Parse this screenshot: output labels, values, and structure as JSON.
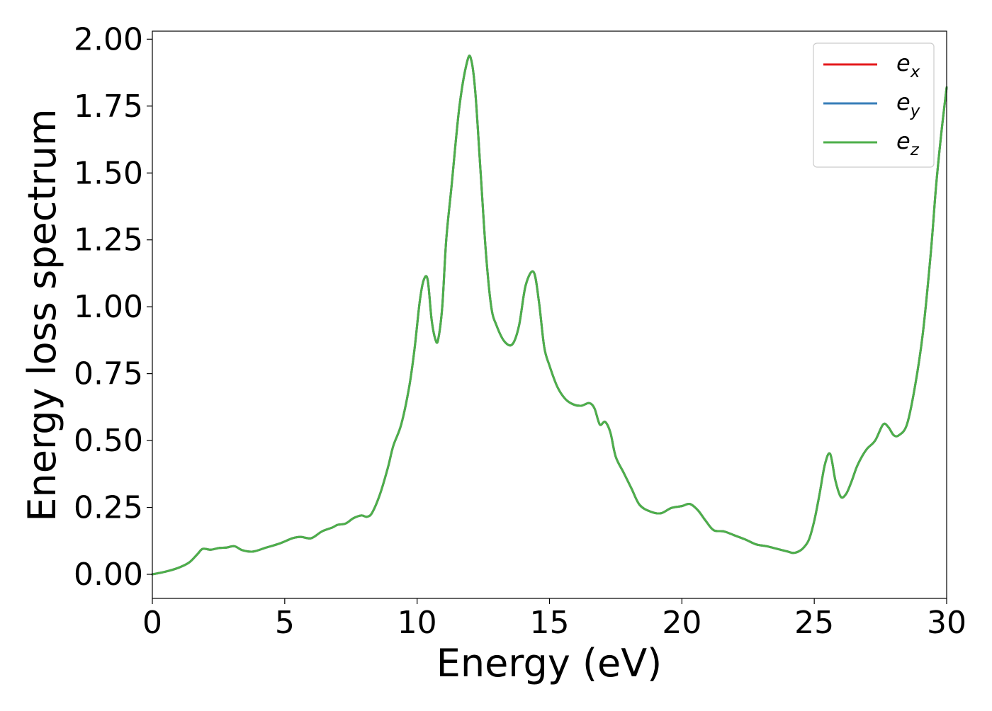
{
  "chart_data": {
    "type": "line",
    "title": "",
    "xlabel": "Energy (eV)",
    "ylabel": "Energy loss spectrum",
    "xlim": [
      0,
      30
    ],
    "ylim": [
      -0.09,
      2.03
    ],
    "xticks": [
      0,
      5,
      10,
      15,
      20,
      25,
      30
    ],
    "xtick_labels": [
      "0",
      "5",
      "10",
      "15",
      "20",
      "25",
      "30"
    ],
    "yticks": [
      0.0,
      0.25,
      0.5,
      0.75,
      1.0,
      1.25,
      1.5,
      1.75,
      2.0
    ],
    "ytick_labels": [
      "0.00",
      "0.25",
      "0.50",
      "0.75",
      "1.00",
      "1.25",
      "1.50",
      "1.75",
      "2.00"
    ],
    "grid": false,
    "legend_position": "top-right",
    "x": [
      0,
      0.5,
      1.0,
      1.4,
      1.7,
      1.9,
      2.2,
      2.5,
      2.8,
      3.1,
      3.4,
      3.8,
      4.3,
      4.8,
      5.3,
      5.6,
      6.0,
      6.4,
      6.8,
      7.0,
      7.3,
      7.6,
      7.9,
      8.1,
      8.3,
      8.6,
      8.9,
      9.1,
      9.4,
      9.7,
      9.9,
      10.1,
      10.25,
      10.4,
      10.55,
      10.7,
      10.8,
      10.95,
      11.1,
      11.3,
      11.6,
      11.9,
      12.05,
      12.2,
      12.4,
      12.6,
      12.8,
      13.0,
      13.3,
      13.6,
      13.85,
      14.1,
      14.4,
      14.6,
      14.8,
      15.0,
      15.3,
      15.6,
      15.9,
      16.2,
      16.5,
      16.7,
      16.9,
      17.1,
      17.3,
      17.5,
      17.8,
      18.1,
      18.4,
      18.8,
      19.2,
      19.6,
      20.0,
      20.3,
      20.6,
      20.9,
      21.2,
      21.6,
      22.0,
      22.4,
      22.8,
      23.2,
      23.6,
      24.0,
      24.2,
      24.4,
      24.6,
      24.8,
      25.0,
      25.2,
      25.4,
      25.6,
      25.8,
      26.0,
      26.2,
      26.4,
      26.6,
      26.8,
      27.0,
      27.3,
      27.6,
      27.8,
      28.0,
      28.2,
      28.5,
      28.8,
      29.1,
      29.4,
      29.6,
      29.8,
      30.0
    ],
    "series": [
      {
        "name": "e_x",
        "color": "#e41a1c",
        "values": [
          0.0,
          0.01,
          0.025,
          0.045,
          0.075,
          0.095,
          0.092,
          0.098,
          0.1,
          0.105,
          0.09,
          0.085,
          0.1,
          0.115,
          0.135,
          0.14,
          0.135,
          0.16,
          0.175,
          0.185,
          0.19,
          0.21,
          0.22,
          0.215,
          0.23,
          0.3,
          0.4,
          0.48,
          0.56,
          0.7,
          0.84,
          1.02,
          1.1,
          1.1,
          0.95,
          0.875,
          0.88,
          1.0,
          1.25,
          1.45,
          1.75,
          1.92,
          1.92,
          1.8,
          1.5,
          1.2,
          1.0,
          0.93,
          0.87,
          0.86,
          0.93,
          1.08,
          1.13,
          1.02,
          0.85,
          0.78,
          0.7,
          0.655,
          0.635,
          0.63,
          0.64,
          0.62,
          0.56,
          0.57,
          0.53,
          0.44,
          0.38,
          0.32,
          0.26,
          0.235,
          0.228,
          0.248,
          0.255,
          0.263,
          0.24,
          0.2,
          0.165,
          0.16,
          0.145,
          0.13,
          0.112,
          0.105,
          0.095,
          0.085,
          0.08,
          0.085,
          0.1,
          0.13,
          0.2,
          0.3,
          0.41,
          0.45,
          0.35,
          0.29,
          0.3,
          0.345,
          0.4,
          0.44,
          0.47,
          0.5,
          0.56,
          0.55,
          0.52,
          0.52,
          0.56,
          0.7,
          0.9,
          1.2,
          1.45,
          1.65,
          1.82
        ]
      },
      {
        "name": "e_y",
        "color": "#377eb8",
        "values": [
          0.0,
          0.01,
          0.025,
          0.045,
          0.075,
          0.095,
          0.092,
          0.098,
          0.1,
          0.105,
          0.09,
          0.085,
          0.1,
          0.115,
          0.135,
          0.14,
          0.135,
          0.16,
          0.175,
          0.185,
          0.19,
          0.21,
          0.22,
          0.215,
          0.23,
          0.3,
          0.4,
          0.48,
          0.56,
          0.7,
          0.84,
          1.02,
          1.1,
          1.1,
          0.95,
          0.875,
          0.88,
          1.0,
          1.25,
          1.45,
          1.75,
          1.92,
          1.92,
          1.8,
          1.5,
          1.2,
          1.0,
          0.93,
          0.87,
          0.86,
          0.93,
          1.08,
          1.13,
          1.02,
          0.85,
          0.78,
          0.7,
          0.655,
          0.635,
          0.63,
          0.64,
          0.62,
          0.56,
          0.57,
          0.53,
          0.44,
          0.38,
          0.32,
          0.26,
          0.235,
          0.228,
          0.248,
          0.255,
          0.263,
          0.24,
          0.2,
          0.165,
          0.16,
          0.145,
          0.13,
          0.112,
          0.105,
          0.095,
          0.085,
          0.08,
          0.085,
          0.1,
          0.13,
          0.2,
          0.3,
          0.41,
          0.45,
          0.35,
          0.29,
          0.3,
          0.345,
          0.4,
          0.44,
          0.47,
          0.5,
          0.56,
          0.55,
          0.52,
          0.52,
          0.56,
          0.7,
          0.9,
          1.2,
          1.45,
          1.65,
          1.82
        ]
      },
      {
        "name": "e_z",
        "color": "#4daf4a",
        "values": [
          0.0,
          0.01,
          0.025,
          0.045,
          0.075,
          0.095,
          0.092,
          0.098,
          0.1,
          0.105,
          0.09,
          0.085,
          0.1,
          0.115,
          0.135,
          0.14,
          0.135,
          0.16,
          0.175,
          0.185,
          0.19,
          0.21,
          0.22,
          0.215,
          0.23,
          0.3,
          0.4,
          0.48,
          0.56,
          0.7,
          0.84,
          1.02,
          1.1,
          1.1,
          0.95,
          0.875,
          0.88,
          1.0,
          1.25,
          1.45,
          1.75,
          1.92,
          1.92,
          1.8,
          1.5,
          1.2,
          1.0,
          0.93,
          0.87,
          0.86,
          0.93,
          1.08,
          1.13,
          1.02,
          0.85,
          0.78,
          0.7,
          0.655,
          0.635,
          0.63,
          0.64,
          0.62,
          0.56,
          0.57,
          0.53,
          0.44,
          0.38,
          0.32,
          0.26,
          0.235,
          0.228,
          0.248,
          0.255,
          0.263,
          0.24,
          0.2,
          0.165,
          0.16,
          0.145,
          0.13,
          0.112,
          0.105,
          0.095,
          0.085,
          0.08,
          0.085,
          0.1,
          0.13,
          0.2,
          0.3,
          0.41,
          0.45,
          0.35,
          0.29,
          0.3,
          0.345,
          0.4,
          0.44,
          0.47,
          0.5,
          0.56,
          0.55,
          0.52,
          0.52,
          0.56,
          0.7,
          0.9,
          1.2,
          1.45,
          1.65,
          1.82
        ]
      }
    ],
    "legend": [
      {
        "base": "e",
        "sub": "x",
        "color": "#e41a1c"
      },
      {
        "base": "e",
        "sub": "y",
        "color": "#377eb8"
      },
      {
        "base": "e",
        "sub": "z",
        "color": "#4daf4a"
      }
    ]
  }
}
